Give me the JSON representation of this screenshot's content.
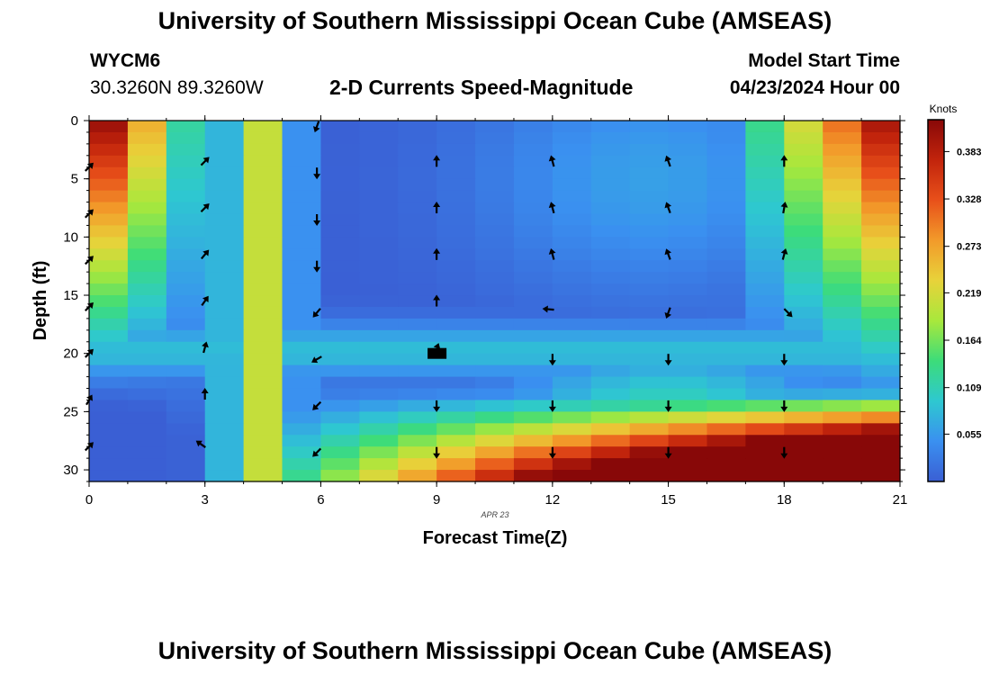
{
  "page": {
    "title_top": "University of Southern Mississippi Ocean Cube (AMSEAS)",
    "title_bottom": "University of Southern Mississippi Ocean Cube (AMSEAS)",
    "station_id": "WYCM6",
    "station_coords": "30.3260N  89.3260W",
    "plot_title": "2-D Currents Speed-Magnitude",
    "model_start_label": "Model Start Time",
    "model_start_value": "04/23/2024 Hour 00",
    "date_label": "APR 23"
  },
  "chart_data": {
    "type": "heatmap",
    "title": "2-D Currents Speed-Magnitude",
    "xlabel": "Forecast Time(Z)",
    "ylabel": "Depth (ft)",
    "xlim": [
      0,
      21
    ],
    "ylim": [
      0,
      31
    ],
    "y_inverted": true,
    "x_ticks": [
      "0",
      "3",
      "6",
      "9",
      "12",
      "15",
      "18",
      "21"
    ],
    "y_ticks": [
      "0",
      "5",
      "10",
      "15",
      "20",
      "25",
      "30"
    ],
    "colorbar": {
      "label": "Knots",
      "range": [
        0.0,
        0.42
      ],
      "ticks": [
        "0.055",
        "0.109",
        "0.164",
        "0.219",
        "0.273",
        "0.328",
        "0.383"
      ],
      "colors": [
        "#3a5fd4",
        "#3a90f0",
        "#2ec8d0",
        "#3cdc7a",
        "#a8e83c",
        "#e8d23a",
        "#f29a2a",
        "#e8501a",
        "#c2240c",
        "#880808"
      ]
    },
    "grid": {
      "hours": 21,
      "depth_bins": 31
    },
    "arrows": [
      {
        "hour": 0,
        "depth": 4,
        "angle": 45
      },
      {
        "hour": 0,
        "depth": 8,
        "angle": 45
      },
      {
        "hour": 0,
        "depth": 12,
        "angle": 45
      },
      {
        "hour": 0,
        "depth": 16,
        "angle": 45
      },
      {
        "hour": 0,
        "depth": 20,
        "angle": 45
      },
      {
        "hour": 0,
        "depth": 24,
        "angle": 30
      },
      {
        "hour": 0,
        "depth": 28,
        "angle": 45
      },
      {
        "hour": 3,
        "depth": 3.5,
        "angle": 45
      },
      {
        "hour": 3,
        "depth": 7.5,
        "angle": 45
      },
      {
        "hour": 3,
        "depth": 11.5,
        "angle": 40
      },
      {
        "hour": 3,
        "depth": 15.5,
        "angle": 35
      },
      {
        "hour": 3,
        "depth": 19.5,
        "angle": 15
      },
      {
        "hour": 3,
        "depth": 23.5,
        "angle": 0
      },
      {
        "hour": 2.9,
        "depth": 27.8,
        "angle": -55
      },
      {
        "hour": 5.9,
        "depth": 0.5,
        "angle": 200
      },
      {
        "hour": 5.9,
        "depth": 4.5,
        "angle": 180
      },
      {
        "hour": 5.9,
        "depth": 8.5,
        "angle": 180
      },
      {
        "hour": 5.9,
        "depth": 12.5,
        "angle": 180
      },
      {
        "hour": 5.9,
        "depth": 16.5,
        "angle": 220
      },
      {
        "hour": 5.9,
        "depth": 20.5,
        "angle": 240
      },
      {
        "hour": 5.9,
        "depth": 24.5,
        "angle": 225
      },
      {
        "hour": 5.9,
        "depth": 28.5,
        "angle": 225
      },
      {
        "hour": 9,
        "depth": 3.5,
        "angle": 0
      },
      {
        "hour": 9,
        "depth": 7.5,
        "angle": 0
      },
      {
        "hour": 9,
        "depth": 11.5,
        "angle": 0
      },
      {
        "hour": 9,
        "depth": 15.5,
        "angle": 0
      },
      {
        "hour": 9,
        "depth": 24.5,
        "angle": 180
      },
      {
        "hour": 9,
        "depth": 28.5,
        "angle": 180
      },
      {
        "hour": 12,
        "depth": 3.5,
        "angle": -15
      },
      {
        "hour": 12,
        "depth": 7.5,
        "angle": -15
      },
      {
        "hour": 12,
        "depth": 11.5,
        "angle": -15
      },
      {
        "hour": 11.9,
        "depth": 16.2,
        "angle": -85
      },
      {
        "hour": 12,
        "depth": 20.5,
        "angle": 180
      },
      {
        "hour": 12,
        "depth": 24.5,
        "angle": 180
      },
      {
        "hour": 12,
        "depth": 28.5,
        "angle": 180
      },
      {
        "hour": 15,
        "depth": 3.5,
        "angle": -20
      },
      {
        "hour": 15,
        "depth": 7.5,
        "angle": -20
      },
      {
        "hour": 15,
        "depth": 11.5,
        "angle": -20
      },
      {
        "hour": 15,
        "depth": 16.5,
        "angle": 200
      },
      {
        "hour": 15,
        "depth": 20.5,
        "angle": 180
      },
      {
        "hour": 15,
        "depth": 24.5,
        "angle": 180
      },
      {
        "hour": 15,
        "depth": 28.5,
        "angle": 180
      },
      {
        "hour": 18,
        "depth": 3.5,
        "angle": 0
      },
      {
        "hour": 18,
        "depth": 7.5,
        "angle": 10
      },
      {
        "hour": 18,
        "depth": 11.5,
        "angle": 15
      },
      {
        "hour": 18.1,
        "depth": 16.5,
        "angle": 135
      },
      {
        "hour": 18,
        "depth": 20.5,
        "angle": 180
      },
      {
        "hour": 18,
        "depth": 24.5,
        "angle": 180
      },
      {
        "hour": 18,
        "depth": 28.5,
        "angle": 180
      }
    ]
  }
}
